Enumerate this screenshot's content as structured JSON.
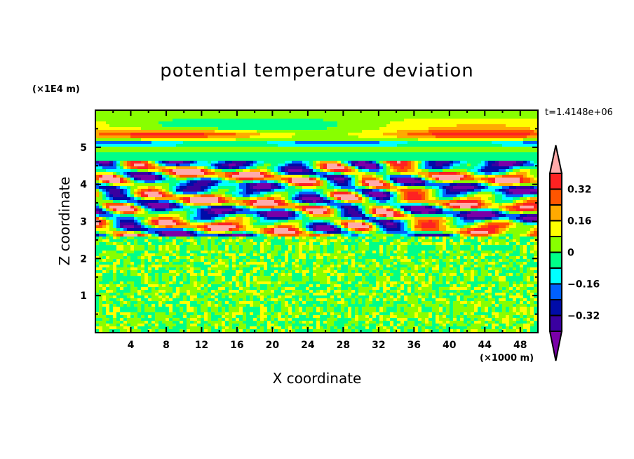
{
  "chart_data": {
    "type": "heatmap",
    "title": "potential temperature deviation",
    "xlabel": "X coordinate",
    "ylabel": "Z coordinate",
    "x_unit": "(×1000 m)",
    "y_unit": "(×1E4 m)",
    "time_label": "t=1.4148e+06",
    "xlim": [
      0,
      50
    ],
    "ylim": [
      0,
      6
    ],
    "x_ticks": [
      4,
      8,
      12,
      16,
      20,
      24,
      28,
      32,
      36,
      40,
      44,
      48
    ],
    "y_ticks": [
      1,
      2,
      3,
      4,
      5
    ],
    "levels": [
      -0.4,
      -0.32,
      -0.24,
      -0.16,
      -0.08,
      0,
      0.08,
      0.16,
      0.24,
      0.32,
      0.4
    ],
    "colorbar_labels": [
      "0.32",
      "0.16",
      "0",
      "-0.16",
      "-0.32"
    ],
    "colorbar_label_values": [
      0.32,
      0.16,
      0,
      -0.16,
      -0.32
    ],
    "colors": [
      "#7a00a8",
      "#3a00a0",
      "#000ca8",
      "#0060ff",
      "#00ffff",
      "#00ff88",
      "#88ff00",
      "#ffff00",
      "#ffaa00",
      "#ff5500",
      "#ff2222",
      "#ffaaaa"
    ],
    "field_description_layers": [
      {
        "z_range": [
          0,
          2.6
        ],
        "amplitude": 0.08
      },
      {
        "z_range": [
          2.6,
          4.6
        ],
        "amplitude": 0.55
      },
      {
        "z_range": [
          4.6,
          6
        ],
        "amplitude": 0.25
      }
    ]
  }
}
